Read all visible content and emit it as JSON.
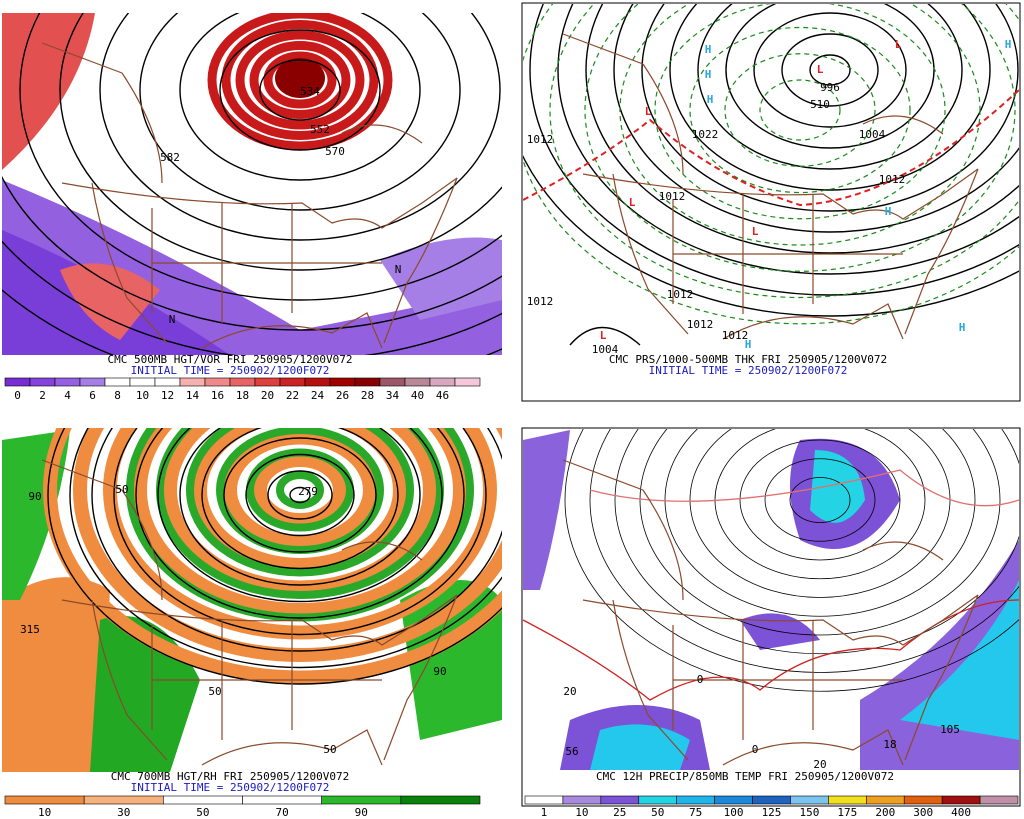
{
  "panels": [
    {
      "title": "CMC 500MB HGT/VOR FRI 250905/1200V072",
      "subtitle": "INITIAL TIME = 250902/1200F072",
      "colorbar": {
        "labels": [
          0,
          2,
          4,
          6,
          8,
          10,
          12,
          14,
          16,
          18,
          20,
          22,
          24,
          26,
          28,
          34,
          40,
          46
        ],
        "colors": [
          "#7a2cd4",
          "#8642dc",
          "#9560e2",
          "#a57fe6",
          "#ffffff",
          "#ffffff",
          "#ffffff",
          "#f6b0b0",
          "#f08a8a",
          "#e86464",
          "#de4040",
          "#cc2424",
          "#b81010",
          "#a00000",
          "#880000",
          "#9c5868",
          "#b88898",
          "#d8a8c0",
          "#f4c8d8"
        ]
      },
      "map_labels": [
        "582",
        "570",
        "552",
        "534",
        "N",
        "N"
      ]
    },
    {
      "title": "CMC PRS/1000-500MB THK FRI 250905/1200V072",
      "subtitle": "INITIAL TIME = 250902/1200F072",
      "map_labels": [
        "H",
        "H",
        "H",
        "H",
        "H",
        "H",
        "H",
        "L",
        "L",
        "L",
        "L",
        "L",
        "L",
        "1012",
        "1012",
        "1012",
        "1012",
        "1012",
        "1012",
        "1012",
        "1004",
        "996",
        "1004",
        "510",
        "1022"
      ]
    },
    {
      "title": "CMC 700MB HGT/RH FRI 250905/1200V072",
      "subtitle": "INITIAL TIME = 250902/1200F072",
      "colorbar": {
        "labels": [
          10,
          30,
          50,
          70,
          90
        ],
        "colors": [
          "#f08c40",
          "#f6b27a",
          "#ffffff",
          "#ffffff",
          "#2cb82c",
          "#0a820a"
        ]
      },
      "map_labels": [
        "50",
        "90",
        "315",
        "279",
        "50",
        "90",
        "50"
      ]
    },
    {
      "title": "CMC 12H PRECIP/850MB TEMP FRI 250905/1200V072",
      "colorbar": {
        "labels": [
          1,
          10,
          25,
          50,
          75,
          100,
          125,
          150,
          175,
          200,
          300,
          400
        ],
        "colors": [
          "#ffffff",
          "#a88ae0",
          "#7c52d6",
          "#24d4e4",
          "#20b4ec",
          "#1c88dc",
          "#1c64c0",
          "#7cc4f0",
          "#f0e020",
          "#f0a020",
          "#e06010",
          "#a01010",
          "#c090a8"
        ]
      },
      "map_labels": [
        "20",
        "0",
        "56",
        "105",
        "20",
        "0",
        "18"
      ]
    }
  ]
}
